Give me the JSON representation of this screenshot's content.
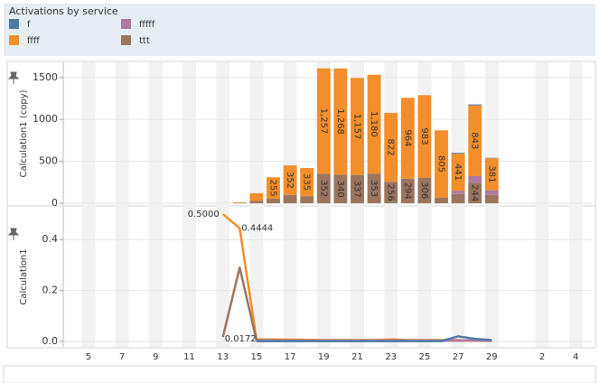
{
  "legend_title": "Activations by service",
  "chart_data": [
    {
      "type": "stacked_bar",
      "y_label": "Calculation1 (copy)",
      "categories": [
        null,
        "5",
        null,
        "7",
        null,
        "9",
        null,
        "11",
        null,
        "13",
        null,
        "15",
        null,
        "17",
        null,
        "19",
        null,
        "21",
        null,
        "23",
        null,
        "25",
        null,
        "27",
        null,
        "29",
        null,
        null,
        "2",
        null,
        "4"
      ],
      "ylim": [
        0,
        1670
      ],
      "yticks": [
        0,
        500,
        1000,
        1500
      ],
      "grid": true,
      "series": [
        {
          "name": "f",
          "color": "#4e79a7",
          "values": [
            null,
            null,
            null,
            null,
            null,
            null,
            null,
            null,
            null,
            null,
            null,
            null,
            null,
            null,
            null,
            null,
            null,
            null,
            null,
            null,
            null,
            null,
            null,
            10,
            12,
            5,
            null,
            null,
            null,
            null,
            null
          ]
        },
        {
          "name": "ffff",
          "color": "#f28e2b",
          "values": [
            null,
            null,
            null,
            null,
            null,
            null,
            null,
            null,
            null,
            null,
            5,
            90,
            255,
            352,
            335,
            1257,
            1268,
            1157,
            1180,
            822,
            964,
            983,
            805,
            441,
            843,
            381,
            null,
            null,
            null,
            null,
            null
          ],
          "value_labels": [
            null,
            null,
            null,
            null,
            null,
            null,
            null,
            null,
            null,
            null,
            null,
            null,
            "255",
            "352",
            "335",
            "1,257",
            "1,268",
            "1,157",
            "1,180",
            "822",
            "964",
            "983",
            "805",
            "441",
            "843",
            "381",
            null,
            null,
            null,
            null,
            null
          ]
        },
        {
          "name": "fffff",
          "color": "#b07aa1",
          "values": [
            null,
            null,
            null,
            null,
            null,
            null,
            null,
            null,
            null,
            null,
            null,
            null,
            null,
            null,
            null,
            null,
            null,
            null,
            null,
            null,
            null,
            null,
            null,
            40,
            80,
            55,
            null,
            null,
            null,
            null,
            null
          ]
        },
        {
          "name": "ttt",
          "color": "#9c755f",
          "values": [
            null,
            null,
            null,
            null,
            null,
            null,
            null,
            null,
            null,
            null,
            5,
            30,
            55,
            100,
            85,
            352,
            340,
            337,
            353,
            256,
            294,
            306,
            65,
            110,
            244,
            100,
            null,
            null,
            null,
            null,
            null
          ],
          "value_labels": [
            null,
            null,
            null,
            null,
            null,
            null,
            null,
            null,
            null,
            null,
            null,
            null,
            null,
            null,
            null,
            "352",
            "340",
            "337",
            "353",
            "256",
            "294",
            "306",
            null,
            null,
            "244",
            null,
            null,
            null,
            null,
            null,
            null
          ]
        }
      ]
    },
    {
      "type": "line",
      "y_label": "Calculation1",
      "ylim": [
        -0.025,
        0.525
      ],
      "yticks": [
        {
          "value": 0,
          "label": "0.0"
        },
        {
          "value": 0.2,
          "label": "0.2"
        },
        {
          "value": 0.4,
          "label": "0.4"
        }
      ],
      "grid": true,
      "series": [
        {
          "name": "ffff",
          "color": "#f28e2b",
          "values": [
            null,
            null,
            null,
            null,
            null,
            null,
            null,
            null,
            null,
            0.5,
            0.4444,
            0.008,
            0.008,
            0.007,
            0.006,
            0.005,
            0.005,
            0.005,
            0.005,
            0.008,
            0.005,
            0.005,
            0.005,
            0.005,
            0.003,
            0.002,
            null,
            null,
            null,
            null,
            null
          ],
          "value_labels": [
            null,
            null,
            null,
            null,
            null,
            null,
            null,
            null,
            null,
            "0.5000",
            "0.4444",
            null,
            null,
            null,
            null,
            null,
            null,
            null,
            null,
            null,
            null,
            null,
            null,
            null,
            null,
            null,
            null,
            null,
            null,
            null,
            null
          ]
        },
        {
          "name": "ttt",
          "color": "#9c755f",
          "values": [
            null,
            null,
            null,
            null,
            null,
            null,
            null,
            null,
            null,
            0.0172,
            0.29,
            0.005,
            0.004,
            0.003,
            0.003,
            0.003,
            0.003,
            0.003,
            0.003,
            0.003,
            0.003,
            0.003,
            0.003,
            0.003,
            0.003,
            0.003,
            null,
            null,
            null,
            null,
            null
          ],
          "value_labels": [
            null,
            null,
            null,
            null,
            null,
            null,
            null,
            null,
            null,
            "0.0172",
            null,
            null,
            null,
            null,
            null,
            null,
            null,
            null,
            null,
            null,
            null,
            null,
            null,
            null,
            null,
            null,
            null,
            null,
            null,
            null,
            null
          ]
        },
        {
          "name": "fffff",
          "color": "#b07aa1",
          "values": [
            null,
            null,
            null,
            null,
            null,
            null,
            null,
            null,
            null,
            null,
            null,
            0.003,
            0.003,
            0.003,
            0.003,
            0.003,
            0.003,
            0.003,
            0.003,
            0.003,
            0.003,
            0.003,
            0.003,
            0.004,
            0.004,
            0.003,
            null,
            null,
            null,
            null,
            null
          ]
        },
        {
          "name": "f",
          "color": "#4e79a7",
          "values": [
            null,
            null,
            null,
            null,
            null,
            null,
            null,
            null,
            null,
            null,
            null,
            0.001,
            0.001,
            0.001,
            0.001,
            0.001,
            0.001,
            0.001,
            0.001,
            0.001,
            0.001,
            0.001,
            0.001,
            0.02,
            0.01,
            0.005,
            null,
            null,
            null,
            null,
            null
          ]
        }
      ]
    }
  ]
}
